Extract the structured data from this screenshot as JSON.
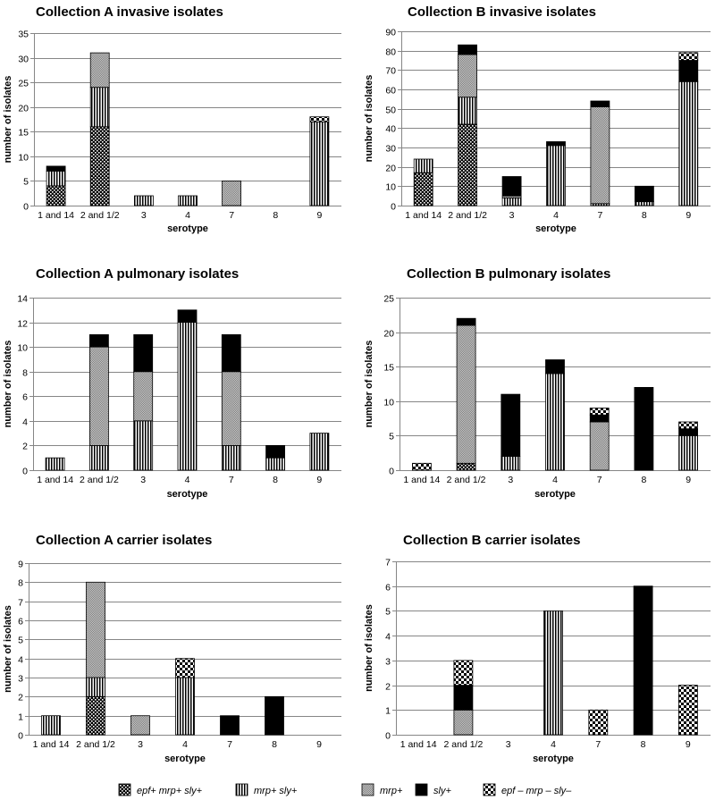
{
  "legend": [
    "epf+ mrp+ sly+",
    "mrp+ sly+",
    "mrp+",
    "sly+",
    "epf – mrp – sly–"
  ],
  "colors": {
    "ink": "#000000",
    "grid": "#868686",
    "background": "#ffffff"
  },
  "chart_data": [
    {
      "type": "bar",
      "stacked": true,
      "title": "Collection A invasive isolates",
      "xlabel": "serotype",
      "ylabel": "number of isolates",
      "categories": [
        "1 and 14",
        "2 and 1/2",
        "3",
        "4",
        "7",
        "8",
        "9"
      ],
      "ylim": [
        0,
        35
      ],
      "ystep": 5,
      "series": [
        {
          "name": "epf+ mrp+ sly+",
          "values": [
            4,
            16,
            0,
            0,
            0,
            0,
            0
          ]
        },
        {
          "name": "mrp+ sly+",
          "values": [
            3,
            8,
            2,
            2,
            0,
            0,
            17
          ]
        },
        {
          "name": "mrp+",
          "values": [
            0,
            7,
            0,
            0,
            5,
            0,
            0
          ]
        },
        {
          "name": "sly+",
          "values": [
            1,
            0,
            0,
            0,
            0,
            0,
            0
          ]
        },
        {
          "name": "epf – mrp – sly–",
          "values": [
            0,
            0,
            0,
            0,
            0,
            0,
            1
          ]
        }
      ]
    },
    {
      "type": "bar",
      "stacked": true,
      "title": "Collection B invasive isolates",
      "xlabel": "serotype",
      "ylabel": "number of isolates",
      "categories": [
        "1 and 14",
        "2 and 1/2",
        "3",
        "4",
        "7",
        "8",
        "9"
      ],
      "ylim": [
        0,
        90
      ],
      "ystep": 10,
      "series": [
        {
          "name": "epf+ mrp+ sly+",
          "values": [
            17,
            42,
            0,
            0,
            0,
            0,
            0
          ]
        },
        {
          "name": "mrp+ sly+",
          "values": [
            7,
            14,
            4,
            31,
            1,
            2,
            64
          ]
        },
        {
          "name": "mrp+",
          "values": [
            0,
            22,
            1,
            0,
            50,
            0,
            0
          ]
        },
        {
          "name": "sly+",
          "values": [
            0,
            5,
            10,
            2,
            3,
            8,
            11
          ]
        },
        {
          "name": "epf – mrp – sly–",
          "values": [
            0,
            0,
            0,
            0,
            0,
            0,
            4
          ]
        }
      ]
    },
    {
      "type": "bar",
      "stacked": true,
      "title": "Collection A pulmonary isolates",
      "xlabel": "serotype",
      "ylabel": "number of isolates",
      "categories": [
        "1 and 14",
        "2 and 1/2",
        "3",
        "4",
        "7",
        "8",
        "9"
      ],
      "ylim": [
        0,
        14
      ],
      "ystep": 2,
      "series": [
        {
          "name": "epf+ mrp+ sly+",
          "values": [
            0,
            0,
            0,
            0,
            0,
            0,
            0
          ]
        },
        {
          "name": "mrp+ sly+",
          "values": [
            1,
            2,
            4,
            12,
            2,
            1,
            3
          ]
        },
        {
          "name": "mrp+",
          "values": [
            0,
            8,
            4,
            0,
            6,
            0,
            0
          ]
        },
        {
          "name": "sly+",
          "values": [
            0,
            1,
            3,
            1,
            3,
            1,
            0
          ]
        },
        {
          "name": "epf – mrp – sly–",
          "values": [
            0,
            0,
            0,
            0,
            0,
            0,
            0
          ]
        }
      ]
    },
    {
      "type": "bar",
      "stacked": true,
      "title": "Collection B pulmonary isolates",
      "xlabel": "serotype",
      "ylabel": "number of isolates",
      "categories": [
        "1 and 14",
        "2 and 1/2",
        "3",
        "4",
        "7",
        "8",
        "9"
      ],
      "ylim": [
        0,
        25
      ],
      "ystep": 5,
      "series": [
        {
          "name": "epf+ mrp+ sly+",
          "values": [
            0,
            1,
            0,
            0,
            0,
            0,
            0
          ]
        },
        {
          "name": "mrp+ sly+",
          "values": [
            0,
            0,
            2,
            14,
            0,
            0,
            5
          ]
        },
        {
          "name": "mrp+",
          "values": [
            0,
            20,
            0,
            0,
            7,
            0,
            0
          ]
        },
        {
          "name": "sly+",
          "values": [
            0,
            1,
            9,
            2,
            1,
            12,
            1
          ]
        },
        {
          "name": "epf – mrp – sly–",
          "values": [
            1,
            0,
            0,
            0,
            1,
            0,
            1
          ]
        }
      ]
    },
    {
      "type": "bar",
      "stacked": true,
      "title": "Collection A carrier isolates",
      "xlabel": "serotype",
      "ylabel": "number of isolates",
      "categories": [
        "1 and 14",
        "2 and 1/2",
        "3",
        "4",
        "7",
        "8",
        "9"
      ],
      "ylim": [
        0,
        9
      ],
      "ystep": 1,
      "series": [
        {
          "name": "epf+ mrp+ sly+",
          "values": [
            0,
            2,
            0,
            0,
            0,
            0,
            0
          ]
        },
        {
          "name": "mrp+ sly+",
          "values": [
            1,
            1,
            0,
            3,
            0,
            0,
            0
          ]
        },
        {
          "name": "mrp+",
          "values": [
            0,
            5,
            1,
            0,
            0,
            0,
            0
          ]
        },
        {
          "name": "sly+",
          "values": [
            0,
            0,
            0,
            0,
            1,
            2,
            0
          ]
        },
        {
          "name": "epf – mrp – sly–",
          "values": [
            0,
            0,
            0,
            1,
            0,
            0,
            0
          ]
        }
      ]
    },
    {
      "type": "bar",
      "stacked": true,
      "title": "Collection B carrier isolates",
      "xlabel": "serotype",
      "ylabel": "number of isolates",
      "categories": [
        "1 and 14",
        "2 and 1/2",
        "3",
        "4",
        "7",
        "8",
        "9"
      ],
      "ylim": [
        0,
        7
      ],
      "ystep": 1,
      "series": [
        {
          "name": "epf+ mrp+ sly+",
          "values": [
            0,
            0,
            0,
            0,
            0,
            0,
            0
          ]
        },
        {
          "name": "mrp+ sly+",
          "values": [
            0,
            0,
            0,
            5,
            0,
            0,
            0
          ]
        },
        {
          "name": "mrp+",
          "values": [
            0,
            1,
            0,
            0,
            0,
            0,
            0
          ]
        },
        {
          "name": "sly+",
          "values": [
            0,
            1,
            0,
            0,
            0,
            6,
            0
          ]
        },
        {
          "name": "epf – mrp – sly–",
          "values": [
            0,
            1,
            0,
            0,
            1,
            0,
            2
          ]
        }
      ]
    }
  ]
}
